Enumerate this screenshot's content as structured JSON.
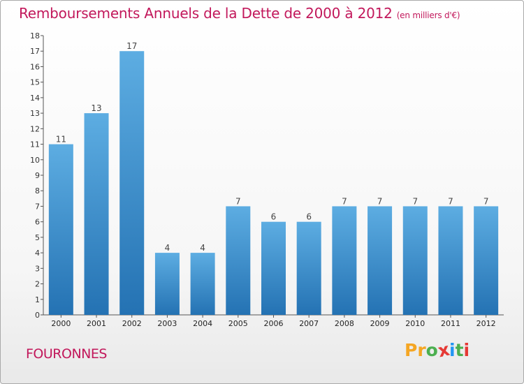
{
  "header": {
    "title": "Remboursements Annuels de la Dette de 2000 à 2012",
    "unit": "(en milliers d'€)"
  },
  "footer": {
    "commune": "FOURONNES",
    "logo": [
      "P",
      "r",
      "o",
      "x",
      "i",
      "t",
      "i"
    ],
    "logo_colors": [
      "#f5a623",
      "#f5a623",
      "#4caf50",
      "#e53935",
      "#2196f3",
      "#4caf50",
      "#e53935"
    ]
  },
  "chart_data": {
    "type": "bar",
    "title": "Remboursements Annuels de la Dette de 2000 à 2012",
    "subtitle": "(en milliers d'€)",
    "categories": [
      "2000",
      "2001",
      "2002",
      "2003",
      "2004",
      "2005",
      "2006",
      "2007",
      "2008",
      "2009",
      "2010",
      "2011",
      "2012"
    ],
    "values": [
      11,
      13,
      17,
      4,
      4,
      7,
      6,
      6,
      7,
      7,
      7,
      7,
      7
    ],
    "data_labels": [
      "11",
      "13",
      "17",
      "4",
      "4",
      "7",
      "6",
      "6",
      "7",
      "7",
      "7",
      "7",
      "7"
    ],
    "ylim": [
      0,
      18
    ],
    "yticks": [
      0,
      1,
      2,
      3,
      4,
      5,
      6,
      7,
      8,
      9,
      10,
      11,
      12,
      13,
      14,
      15,
      16,
      17,
      18
    ],
    "grid": false,
    "bar_color_top": "#5dade2",
    "bar_color_bottom": "#2472b3"
  }
}
